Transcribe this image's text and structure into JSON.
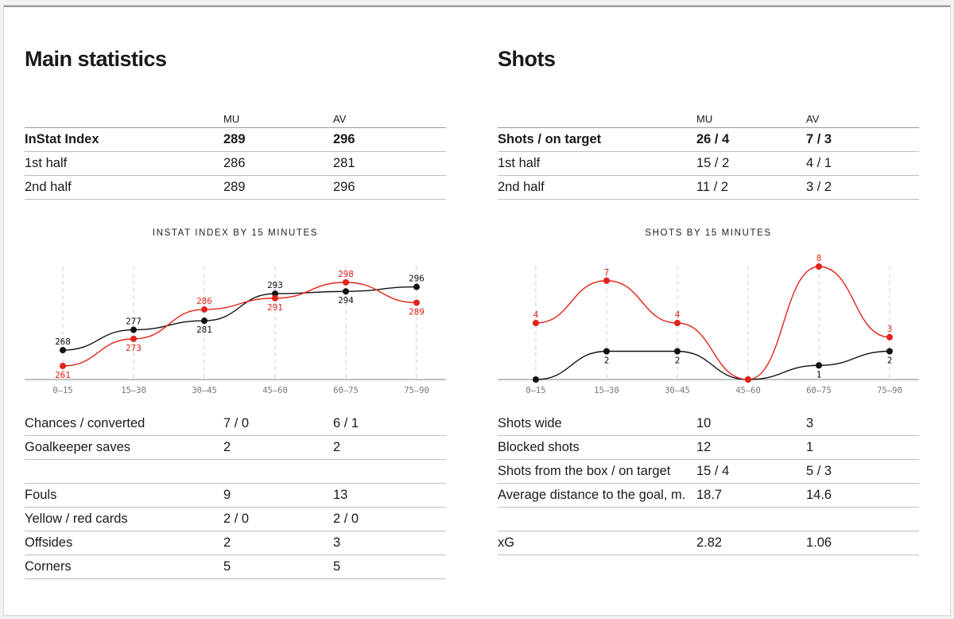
{
  "left": {
    "title": "Main statistics",
    "header": {
      "label": "",
      "mu": "MU",
      "av": "AV"
    },
    "top_rows": [
      {
        "label": "InStat Index",
        "mu": "289",
        "av": "296",
        "bold": true
      },
      {
        "label": "1st half",
        "mu": "286",
        "av": "281"
      },
      {
        "label": "2nd half",
        "mu": "289",
        "av": "296"
      }
    ],
    "chart_title": "INSTAT INDEX BY 15 MINUTES",
    "bottom_rows": [
      {
        "label": "Chances / converted",
        "mu": "7 / 0",
        "av": "6 / 1"
      },
      {
        "label": "Goalkeeper saves",
        "mu": "2",
        "av": "2"
      },
      {
        "label": "",
        "mu": "",
        "av": ""
      },
      {
        "label": "Fouls",
        "mu": "9",
        "av": "13"
      },
      {
        "label": "Yellow / red cards",
        "mu": "2 / 0",
        "av": "2 / 0"
      },
      {
        "label": "Offsides",
        "mu": "2",
        "av": "3"
      },
      {
        "label": "Corners",
        "mu": "5",
        "av": "5"
      }
    ]
  },
  "right": {
    "title": "Shots",
    "header": {
      "label": "",
      "mu": "MU",
      "av": "AV"
    },
    "top_rows": [
      {
        "label": "Shots / on target",
        "mu": "26 / 4",
        "av": "7 / 3",
        "bold": true
      },
      {
        "label": "1st half",
        "mu": "15 / 2",
        "av": "4 / 1"
      },
      {
        "label": "2nd half",
        "mu": "11 / 2",
        "av": "3 / 2"
      }
    ],
    "chart_title": "SHOTS BY 15 MINUTES",
    "bottom_rows": [
      {
        "label": "Shots wide",
        "mu": "10",
        "av": "3"
      },
      {
        "label": "Blocked shots",
        "mu": "12",
        "av": "1"
      },
      {
        "label": "Shots from the box / on target",
        "mu": "15 / 4",
        "av": "5 / 3"
      },
      {
        "label": "Average distance to the goal, m.",
        "mu": "18.7",
        "av": "14.6"
      },
      {
        "label": "",
        "mu": "",
        "av": ""
      },
      {
        "label": "xG",
        "mu": "2.82",
        "av": "1.06"
      }
    ]
  },
  "colors": {
    "mu": "#e2231a",
    "av": "#111111",
    "grid": "#cccccc"
  },
  "chart_data": [
    {
      "type": "line",
      "title": "INSTAT INDEX BY 15 MINUTES",
      "categories": [
        "0–15",
        "15–30",
        "30–45",
        "45–60",
        "60–75",
        "75–90"
      ],
      "ylim": [
        255,
        305
      ],
      "series": [
        {
          "name": "MU",
          "color": "#e2231a",
          "values": [
            261,
            273,
            286,
            291,
            298,
            289
          ],
          "label_pos": [
            "below",
            "below",
            "above",
            "below",
            "above",
            "below"
          ]
        },
        {
          "name": "AV",
          "color": "#111111",
          "values": [
            268,
            277,
            281,
            293,
            294,
            296
          ],
          "label_pos": [
            "above",
            "above",
            "below",
            "above",
            "below",
            "above"
          ]
        }
      ]
    },
    {
      "type": "line",
      "title": "SHOTS BY 15 MINUTES",
      "categories": [
        "0–15",
        "15–30",
        "30–45",
        "45–60",
        "60–75",
        "75–90"
      ],
      "ylim": [
        0,
        8
      ],
      "series": [
        {
          "name": "MU",
          "color": "#e2231a",
          "values": [
            4,
            7,
            4,
            0,
            8,
            3
          ],
          "label_pos": [
            "above",
            "above",
            "above",
            "none",
            "above",
            "above"
          ]
        },
        {
          "name": "AV",
          "color": "#111111",
          "values": [
            0,
            2,
            2,
            0,
            1,
            2
          ],
          "label_pos": [
            "none",
            "below",
            "below",
            "none",
            "below",
            "below"
          ]
        }
      ]
    }
  ]
}
